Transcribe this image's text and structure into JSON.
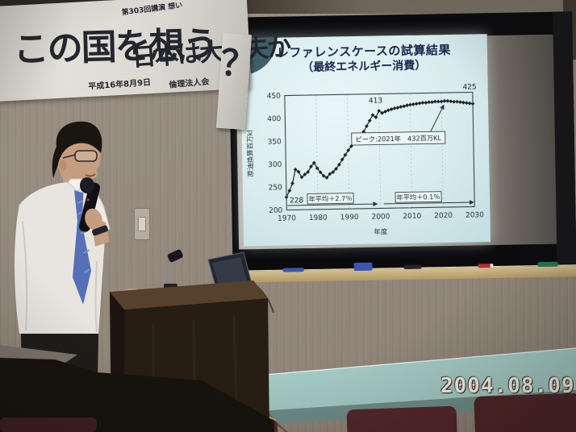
{
  "photo": {
    "date_stamp": "2004.08.09",
    "scene": "lecture room: presenter with microphone at wooden podium, projected slide on screen over blackboard, calligraphy banner"
  },
  "banner": {
    "small_top": "第303回講演 想い",
    "main_left": "この国を想う",
    "main_right": "日本は大丈夫か",
    "question_mark": "？",
    "small_bottom_left": "平成16年8月9日",
    "small_bottom_right": "倫理法人会"
  },
  "slide": {
    "title_line1": "レファレンスケースの試算結果",
    "title_line2": "（最終エネルギー消費）"
  },
  "chart_data": {
    "type": "line",
    "title": "レファレンスケースの試算結果（最終エネルギー消費）",
    "xlabel": "年度",
    "ylabel": "原油換算百万kl",
    "x_start": 1970,
    "x_end": 2030,
    "x_ticks": [
      1970,
      1980,
      1990,
      2000,
      2010,
      2020,
      2030
    ],
    "y_ticks": [
      200,
      250,
      300,
      350,
      400,
      450
    ],
    "ylim": [
      200,
      450
    ],
    "grid": "faint dashed vertical gridlines at decades",
    "legend_position": "none",
    "marker": "diamond",
    "series": [
      {
        "name": "最終エネルギー消費（原油換算百万kl）",
        "values": [
          228,
          242,
          258,
          288,
          283,
          271,
          277,
          282,
          294,
          302,
          290,
          281,
          273,
          269,
          277,
          281,
          288,
          297,
          308,
          318,
          328,
          337,
          344,
          348,
          356,
          368,
          380,
          392,
          404,
          399,
          413,
          408,
          411,
          414,
          416,
          418,
          419,
          421,
          422,
          424,
          425,
          426,
          427,
          428,
          429,
          429,
          430,
          430,
          431,
          431,
          431,
          432,
          432,
          431,
          430,
          430,
          429,
          428,
          427,
          426,
          425
        ]
      }
    ],
    "annotations": {
      "start_value_label": "228",
      "label_2000": "413",
      "end_value_label": "425",
      "peak_box": "ピーク:2021年　432百万KL",
      "avg_left_box": "年平均＋2.7％",
      "avg_right_box": "年平均＋0.1％"
    }
  },
  "room": {
    "tray_markers": [
      "blue eraser",
      "blue marker",
      "black marker",
      "red marker",
      "green marker"
    ]
  },
  "colors": {
    "slide_bg": "#d9ecee",
    "slide_accent_corner": "#415d68",
    "title_navy": "#1b2750",
    "chart_line": "#2c2c30",
    "wall": "#958a7d",
    "banner_paper": "#dcd8d2",
    "calligraphy_ink": "#23262e",
    "blackboard": "#0b0b0d",
    "tray_wood": "#c3ae7d",
    "table_teal": "#a3c9c4",
    "chair_maroon": "#56282b",
    "podium_wood": "#281d12",
    "date_stamp": "#f3efe3"
  }
}
